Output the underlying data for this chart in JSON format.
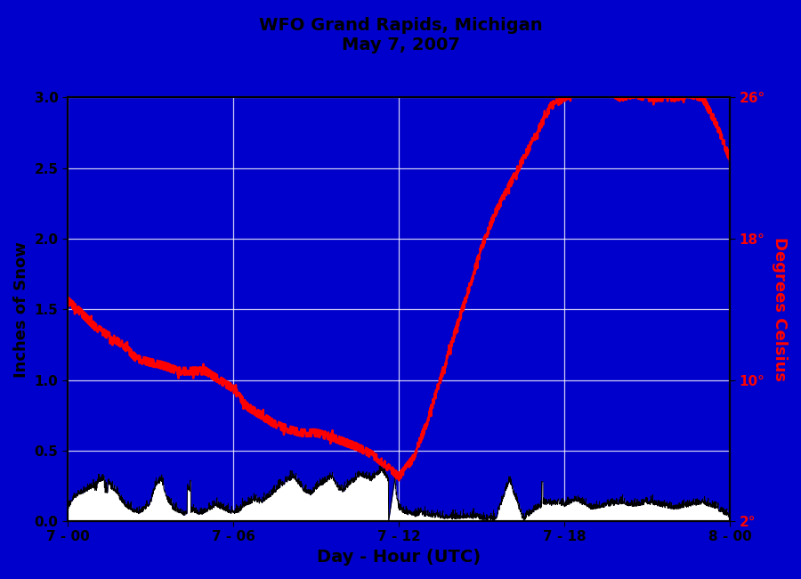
{
  "title_line1": "WFO Grand Rapids, Michigan",
  "title_line2": "May 7, 2007",
  "xlabel": "Day - Hour (UTC)",
  "ylabel_left": "Inches of Snow",
  "ylabel_right": "Degrees Celsius",
  "bg_color": "#0000CC",
  "figure_bg": "#0000CC",
  "snow_fill_color": "#FFFFFF",
  "snow_line_color": "#000000",
  "temp_line_color": "#FF0000",
  "grid_color": "#FFFFFF",
  "ylim_left": [
    0.0,
    3.0
  ],
  "ylim_right": [
    2.0,
    26.0
  ],
  "xlim": [
    0,
    24
  ],
  "xtick_positions": [
    0,
    6,
    12,
    18,
    24
  ],
  "xtick_labels": [
    "7 - 00",
    "7 - 06",
    "7 - 12",
    "7 - 18",
    "8 - 00"
  ],
  "ytick_left": [
    0.0,
    0.5,
    1.0,
    1.5,
    2.0,
    2.5,
    3.0
  ],
  "ytick_right_vals": [
    2,
    10,
    18,
    26
  ],
  "ytick_right_labels": [
    "2°",
    "10°",
    "18°",
    "26°"
  ],
  "temp_control_hours": [
    0,
    0.5,
    1.0,
    1.5,
    2.0,
    2.5,
    3.0,
    3.5,
    4.0,
    4.5,
    5.0,
    5.5,
    6.0,
    6.5,
    7.0,
    7.5,
    8.0,
    8.5,
    9.0,
    9.5,
    10.0,
    10.5,
    11.0,
    11.5,
    11.8,
    12.0,
    12.5,
    13.0,
    13.5,
    14.0,
    14.5,
    15.0,
    15.5,
    16.0,
    16.5,
    17.0,
    17.5,
    18.0,
    18.5,
    19.0,
    19.5,
    20.0,
    20.5,
    21.0,
    21.5,
    22.0,
    22.5,
    23.0,
    23.5,
    24.0
  ],
  "temp_control_vals": [
    14.5,
    13.8,
    13.0,
    12.5,
    12.0,
    11.2,
    11.0,
    10.8,
    10.5,
    10.5,
    10.5,
    10.0,
    9.5,
    8.5,
    8.0,
    7.5,
    7.2,
    7.0,
    7.0,
    6.8,
    6.5,
    6.2,
    5.8,
    5.2,
    4.8,
    4.5,
    5.5,
    7.5,
    10.0,
    12.5,
    15.0,
    17.5,
    19.5,
    21.0,
    22.5,
    24.0,
    25.5,
    26.0,
    26.5,
    27.0,
    26.5,
    26.0,
    26.2,
    26.0,
    26.0,
    26.0,
    26.2,
    26.0,
    24.5,
    22.5
  ],
  "snow_control_hours": [
    0,
    0.2,
    0.4,
    0.6,
    0.8,
    1.0,
    1.2,
    1.4,
    1.6,
    1.8,
    2.0,
    2.2,
    2.4,
    2.6,
    2.8,
    3.0,
    3.2,
    3.4,
    3.6,
    3.8,
    4.0,
    4.2,
    4.4,
    4.6,
    4.8,
    5.0,
    5.2,
    5.4,
    5.6,
    5.8,
    6.0,
    6.2,
    6.4,
    6.6,
    6.8,
    7.0,
    7.2,
    7.4,
    7.6,
    7.8,
    8.0,
    8.2,
    8.4,
    8.6,
    8.8,
    9.0,
    9.2,
    9.4,
    9.6,
    9.8,
    10.0,
    10.2,
    10.4,
    10.6,
    10.8,
    11.0,
    11.2,
    11.4,
    11.6,
    11.8,
    12.0,
    12.2,
    12.4,
    12.6,
    12.8,
    13.0,
    13.5,
    14.0,
    14.5,
    15.0,
    15.5,
    16.0,
    16.5,
    17.0,
    17.2,
    17.4,
    17.6,
    17.8,
    18.0,
    18.2,
    18.4,
    18.6,
    18.8,
    19.0,
    19.5,
    20.0,
    20.5,
    21.0,
    21.5,
    22.0,
    22.5,
    23.0,
    23.5,
    24.0
  ],
  "snow_control_vals": [
    0.08,
    0.15,
    0.18,
    0.2,
    0.22,
    0.25,
    0.28,
    0.3,
    0.22,
    0.18,
    0.12,
    0.08,
    0.06,
    0.05,
    0.08,
    0.12,
    0.25,
    0.28,
    0.15,
    0.08,
    0.06,
    0.04,
    0.05,
    0.06,
    0.04,
    0.06,
    0.08,
    0.1,
    0.08,
    0.06,
    0.05,
    0.06,
    0.1,
    0.12,
    0.14,
    0.12,
    0.15,
    0.18,
    0.22,
    0.25,
    0.28,
    0.3,
    0.25,
    0.2,
    0.18,
    0.22,
    0.25,
    0.28,
    0.3,
    0.22,
    0.2,
    0.25,
    0.28,
    0.32,
    0.3,
    0.28,
    0.32,
    0.35,
    0.28,
    0.3,
    0.08,
    0.05,
    0.04,
    0.03,
    0.04,
    0.03,
    0.02,
    0.01,
    0.02,
    0.01,
    0.0,
    0.28,
    0.0,
    0.08,
    0.1,
    0.12,
    0.1,
    0.12,
    0.1,
    0.12,
    0.14,
    0.12,
    0.1,
    0.08,
    0.1,
    0.12,
    0.1,
    0.12,
    0.1,
    0.08,
    0.1,
    0.12,
    0.08,
    0.02
  ]
}
